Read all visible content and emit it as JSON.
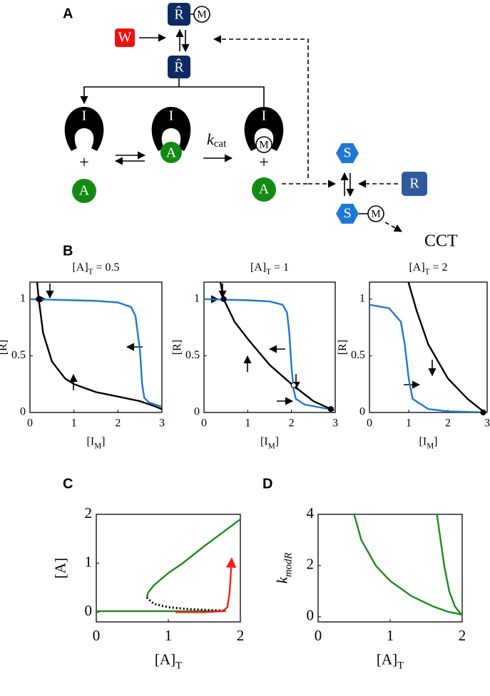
{
  "diagram": {
    "panel_labels": [
      "A",
      "B",
      "C",
      "D"
    ],
    "W": "W",
    "R_hat": "R̂",
    "M": "M",
    "I": "I",
    "A": "A",
    "plus": "+",
    "k": "k",
    "cat": "cat",
    "S": "S",
    "R": "R",
    "CCT": "CCT"
  },
  "chart_data": [
    {
      "type": "line",
      "title": [
        {
          "text": "[A]"
        },
        {
          "text": "T",
          "sub": true
        },
        {
          "text": " = 0.5"
        }
      ],
      "xlabel": [
        {
          "text": "[I"
        },
        {
          "text": "M",
          "sub": true
        },
        {
          "text": "]"
        }
      ],
      "ylabel": [
        {
          "text": "[R]"
        }
      ],
      "xlim": [
        0,
        3
      ],
      "ylim": [
        0,
        1.15
      ],
      "xticks": [
        0,
        1,
        2,
        3
      ],
      "yticks": [
        0,
        0.5,
        1
      ],
      "series": [
        {
          "color": "#1f77d4",
          "x": [
            0,
            0.5,
            1,
            1.5,
            2,
            2.3,
            2.4,
            2.5,
            2.55,
            2.6,
            2.7,
            3
          ],
          "values": [
            1,
            0.995,
            0.99,
            0.985,
            0.97,
            0.93,
            0.85,
            0.55,
            0.25,
            0.13,
            0.09,
            0.05
          ]
        },
        {
          "color": "#000000",
          "x": [
            0.15,
            0.2,
            0.3,
            0.5,
            0.8,
            1,
            1.5,
            2,
            2.5,
            2.8,
            3
          ],
          "values": [
            1.2,
            1,
            0.7,
            0.45,
            0.3,
            0.25,
            0.18,
            0.14,
            0.1,
            0.06,
            0.03
          ]
        }
      ],
      "markers": [
        {
          "x": 0.2,
          "y": 1,
          "filled": true
        }
      ]
    },
    {
      "type": "line",
      "title": [
        {
          "text": "[A]"
        },
        {
          "text": "T",
          "sub": true
        },
        {
          "text": " = 1"
        }
      ],
      "xlabel": [
        {
          "text": "[I"
        },
        {
          "text": "M",
          "sub": true
        },
        {
          "text": "]"
        }
      ],
      "ylabel": [
        {
          "text": "[R]"
        }
      ],
      "xlim": [
        0,
        3
      ],
      "ylim": [
        0,
        1.15
      ],
      "xticks": [
        0,
        1,
        2,
        3
      ],
      "yticks": [
        0,
        0.5,
        1
      ],
      "series": [
        {
          "color": "#1f77d4",
          "x": [
            0,
            0.5,
            1,
            1.5,
            1.8,
            1.9,
            1.95,
            2,
            2.05,
            2.1,
            2.3,
            3
          ],
          "values": [
            1,
            0.995,
            0.99,
            0.98,
            0.95,
            0.88,
            0.7,
            0.4,
            0.2,
            0.12,
            0.07,
            0.02
          ]
        },
        {
          "color": "#000000",
          "x": [
            0.35,
            0.45,
            0.7,
            1,
            1.5,
            2,
            2.5,
            2.9
          ],
          "values": [
            1.2,
            1,
            0.8,
            0.65,
            0.42,
            0.25,
            0.1,
            0.03
          ]
        }
      ],
      "markers": [
        {
          "x": 0.45,
          "y": 1,
          "filled": true
        },
        {
          "x": 2.05,
          "y": 0.24,
          "filled": false
        },
        {
          "x": 2.9,
          "y": 0.03,
          "filled": true
        }
      ]
    },
    {
      "type": "line",
      "title": [
        {
          "text": "[A]"
        },
        {
          "text": "T",
          "sub": true
        },
        {
          "text": " = 2"
        }
      ],
      "xlabel": [
        {
          "text": "[I"
        },
        {
          "text": "M",
          "sub": true
        },
        {
          "text": "]"
        }
      ],
      "ylabel": [
        {
          "text": "[R]"
        }
      ],
      "xlim": [
        0,
        3
      ],
      "ylim": [
        0,
        1.15
      ],
      "xticks": [
        0,
        1,
        2,
        3
      ],
      "yticks": [
        0,
        0.5,
        1
      ],
      "series": [
        {
          "color": "#1f77d4",
          "x": [
            0,
            0.5,
            0.8,
            0.9,
            1,
            1.1,
            1.5,
            2,
            3
          ],
          "values": [
            0.95,
            0.92,
            0.8,
            0.6,
            0.3,
            0.12,
            0.03,
            0.01,
            0
          ]
        },
        {
          "color": "#000000",
          "x": [
            0.95,
            1.2,
            1.5,
            2,
            2.5,
            2.9
          ],
          "values": [
            1.2,
            0.9,
            0.6,
            0.3,
            0.12,
            0.01
          ]
        }
      ],
      "markers": [
        {
          "x": 2.9,
          "y": 0,
          "filled": true
        }
      ]
    },
    {
      "type": "line",
      "xlabel": [
        {
          "text": "[A]"
        },
        {
          "text": "T",
          "sub": true
        }
      ],
      "ylabel": [
        {
          "text": "[A]"
        }
      ],
      "xlim": [
        0,
        2
      ],
      "ylim": [
        -0.2,
        2
      ],
      "xticks": [
        0,
        1,
        2
      ],
      "yticks": [
        0,
        1,
        2
      ],
      "series": [
        {
          "color": "#1a8c1a",
          "x": [
            0.7,
            0.72,
            0.8,
            1,
            1.2,
            1.5,
            2
          ],
          "values": [
            0.3,
            0.4,
            0.55,
            0.8,
            1,
            1.35,
            1.9
          ]
        },
        {
          "color": "#1a8c1a",
          "x": [
            0,
            1.8
          ],
          "values": [
            0.02,
            0.02
          ]
        },
        {
          "color": "#000000",
          "linestyle": "dotted",
          "x": [
            0.7,
            0.8,
            1,
            1.3,
            1.6,
            1.8
          ],
          "values": [
            0.3,
            0.17,
            0.1,
            0.06,
            0.04,
            0.03
          ]
        },
        {
          "color": "#ff1a1a",
          "arrow_end": true,
          "x": [
            1.1,
            1.5,
            1.75,
            1.82,
            1.85,
            1.88
          ],
          "values": [
            0,
            0,
            0.02,
            0.1,
            0.4,
            1.1
          ]
        }
      ],
      "markers": []
    },
    {
      "type": "line",
      "xlabel": [
        {
          "text": "[A]"
        },
        {
          "text": "T",
          "sub": true
        }
      ],
      "ylabel": [
        {
          "text": "k",
          "italic": true
        },
        {
          "text": "modR",
          "sub": true,
          "italic": true
        }
      ],
      "xlim": [
        0,
        2
      ],
      "ylim": [
        -0.2,
        4
      ],
      "xticks": [
        0,
        1,
        2
      ],
      "yticks": [
        0,
        2,
        4
      ],
      "series": [
        {
          "color": "#1a8c1a",
          "x": [
            0.5,
            0.6,
            0.8,
            1,
            1.3,
            1.6,
            1.8,
            2
          ],
          "values": [
            4,
            3,
            2,
            1.4,
            0.8,
            0.4,
            0.2,
            0.08
          ]
        },
        {
          "color": "#1a8c1a",
          "x": [
            1.65,
            1.7,
            1.75,
            1.82,
            1.9,
            2
          ],
          "values": [
            4,
            3,
            2,
            1,
            0.4,
            0.05
          ]
        }
      ],
      "markers": []
    }
  ]
}
